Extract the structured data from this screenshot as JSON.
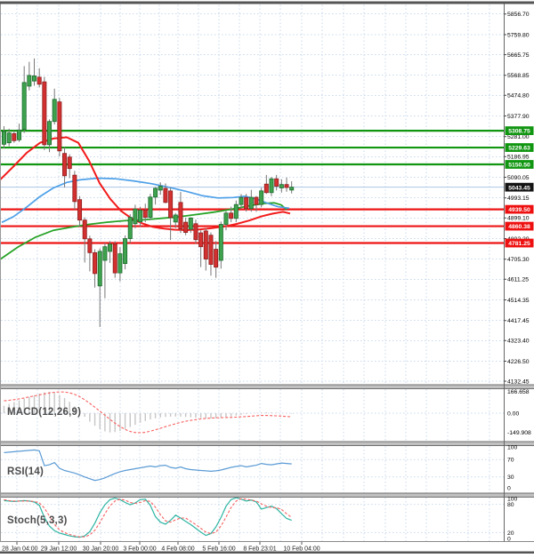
{
  "price_axis": {
    "labels": [
      "5856.70",
      "5759.80",
      "5665.75",
      "5568.85",
      "5474.80",
      "5377.90",
      "5281.00",
      "5186.95",
      "5090.05",
      "4993.15",
      "4899.10",
      "4802.20",
      "4705.30",
      "4611.25",
      "4514.35",
      "4417.45",
      "4323.40",
      "4226.50",
      "4132.45"
    ],
    "resistance_labels": [
      "5308.75",
      "5229.63",
      "5150.50"
    ],
    "support_labels": [
      "4939.50",
      "4860.38",
      "4781.25"
    ],
    "current_price_label": "5043.45"
  },
  "time_axis": {
    "labels": [
      "28 Jan 04:00",
      "29 Jan 12:00",
      "30 Jan 20:00",
      "3 Feb 00:00",
      "4 Feb 08:00",
      "5 Feb 16:00",
      "8 Feb 23:01",
      "10 Feb 04:00"
    ]
  },
  "indicators": {
    "macd": {
      "label": "MACD(12,26,9)",
      "axis_labels": [
        "166.658",
        "0.00",
        "-149.908"
      ]
    },
    "rsi": {
      "label": "RSI(14)",
      "axis_labels": [
        "100",
        "70",
        "30",
        "0"
      ]
    },
    "stoch": {
      "label": "Stoch(5,3,3)",
      "axis_labels": [
        "100",
        "80",
        "20",
        "0"
      ]
    }
  },
  "colors": {
    "grid": "#c9d9ec",
    "candle_up_fill": "#3ea24e",
    "candle_up_stroke": "#1e6b2e",
    "candle_down_fill": "#d33030",
    "candle_down_stroke": "#8e1f1f",
    "wick": "#777777",
    "ma_blue": "#4da0e8",
    "ma_red": "#f21b1b",
    "ma_green": "#27a327",
    "resistance_line": "#119611",
    "support_line": "#ee1414",
    "current_line": "#a8c6e6",
    "macd_hist": "#c6c6c6",
    "signal_red": "#f96060",
    "rsi_line": "#5b9bd5",
    "stoch_k": "#2fb5a3",
    "badge_green": "#119611",
    "badge_red": "#ee1010",
    "badge_black": "#141414",
    "separator_fill": "#c0c0c0",
    "separator_edge": "#707070",
    "axis_text": "#000000",
    "time_text": "#222222"
  },
  "chart_data": {
    "type": "candlestick",
    "timeframe_labels": [
      "28 Jan 04:00",
      "29 Jan 12:00",
      "30 Jan 20:00",
      "3 Feb 00:00",
      "4 Feb 08:00",
      "5 Feb 16:00",
      "8 Feb 23:01",
      "10 Feb 04:00"
    ],
    "y_axis_main_range": [
      4132.45,
      5856.7
    ],
    "levels": {
      "resistance": [
        5308.75,
        5229.63,
        5150.5
      ],
      "support": [
        4939.5,
        4860.38,
        4781.25
      ],
      "current": 5043.45
    },
    "candles_ohlc": [
      [
        5245,
        5330,
        5225,
        5305
      ],
      [
        5252,
        5318,
        5236,
        5298
      ],
      [
        5295,
        5310,
        5252,
        5262
      ],
      [
        5266,
        5342,
        5256,
        5312
      ],
      [
        5315,
        5612,
        5298,
        5535
      ],
      [
        5518,
        5632,
        5498,
        5568
      ],
      [
        5542,
        5648,
        5520,
        5566
      ],
      [
        5560,
        5602,
        5512,
        5527
      ],
      [
        5538,
        5562,
        5218,
        5243
      ],
      [
        5243,
        5362,
        5208,
        5352
      ],
      [
        5352,
        5506,
        5338,
        5456
      ],
      [
        5444,
        5462,
        5188,
        5214
      ],
      [
        5202,
        5232,
        5042,
        5097
      ],
      [
        5185,
        5198,
        5086,
        5131
      ],
      [
        5100,
        5120,
        4938,
        4976
      ],
      [
        4985,
        5002,
        4858,
        4889
      ],
      [
        4889,
        4902,
        4690,
        4801
      ],
      [
        4801,
        4816,
        4648,
        4736
      ],
      [
        4736,
        4752,
        4572,
        4638
      ],
      [
        4580,
        4756,
        4387,
        4742
      ],
      [
        4700,
        4782,
        4522,
        4764
      ],
      [
        4742,
        4791,
        4688,
        4776
      ],
      [
        4776,
        4790,
        4618,
        4641
      ],
      [
        4641,
        4762,
        4601,
        4731
      ],
      [
        4685,
        4817,
        4658,
        4802
      ],
      [
        4802,
        4917,
        4781,
        4902
      ],
      [
        4872,
        4961,
        4851,
        4941
      ],
      [
        4881,
        4952,
        4858,
        4935
      ],
      [
        4935,
        4966,
        4879,
        4902
      ],
      [
        4902,
        5012,
        4889,
        4997
      ],
      [
        4997,
        5044,
        4962,
        5038
      ],
      [
        5030,
        5066,
        5008,
        5048
      ],
      [
        5038,
        5061,
        4968,
        4972
      ],
      [
        5026,
        5041,
        4795,
        4901
      ],
      [
        4880,
        4922,
        4851,
        4913
      ],
      [
        4972,
        5021,
        4828,
        4847
      ],
      [
        4879,
        4901,
        4818,
        4831
      ],
      [
        4846,
        4902,
        4829,
        4899
      ],
      [
        4872,
        4891,
        4778,
        4797
      ],
      [
        4829,
        4841,
        4668,
        4764
      ],
      [
        4838,
        4851,
        4652,
        4706
      ],
      [
        4818,
        4831,
        4628,
        4681
      ],
      [
        4752,
        4791,
        4618,
        4668
      ],
      [
        4700,
        4882,
        4661,
        4869
      ],
      [
        4869,
        4931,
        4841,
        4922
      ],
      [
        4922,
        4952,
        4879,
        4897
      ],
      [
        4897,
        4981,
        4879,
        4962
      ],
      [
        4962,
        5011,
        4941,
        4995
      ],
      [
        4995,
        5012,
        4929,
        4943
      ],
      [
        4943,
        5031,
        4928,
        4996
      ],
      [
        4996,
        5002,
        4928,
        4962
      ],
      [
        4962,
        5041,
        4949,
        5026
      ],
      [
        5058,
        5101,
        5012,
        5018
      ],
      [
        5018,
        5092,
        5001,
        5083
      ],
      [
        5083,
        5101,
        5028,
        5048
      ],
      [
        5040,
        5081,
        5018,
        5056
      ],
      [
        5056,
        5089,
        5022,
        5042
      ],
      [
        5030,
        5071,
        5014,
        5043.45
      ]
    ],
    "overlays": {
      "ma_blue": [
        [
          2,
          4878
        ],
        [
          15,
          4905
        ],
        [
          30,
          4950
        ],
        [
          45,
          5000
        ],
        [
          60,
          5040
        ],
        [
          75,
          5066
        ],
        [
          90,
          5078
        ],
        [
          110,
          5086
        ],
        [
          130,
          5083
        ],
        [
          150,
          5073
        ],
        [
          170,
          5060
        ],
        [
          190,
          5043
        ],
        [
          210,
          5023
        ],
        [
          228,
          5003
        ],
        [
          245,
          4993
        ],
        [
          262,
          4995
        ],
        [
          275,
          5001
        ],
        [
          288,
          4988
        ],
        [
          300,
          4969
        ],
        [
          312,
          4952
        ],
        [
          325,
          4945
        ]
      ],
      "ma_red": [
        [
          0,
          5078
        ],
        [
          15,
          5140
        ],
        [
          30,
          5205
        ],
        [
          45,
          5252
        ],
        [
          60,
          5272
        ],
        [
          75,
          5278
        ],
        [
          88,
          5252
        ],
        [
          100,
          5168
        ],
        [
          112,
          5062
        ],
        [
          124,
          4988
        ],
        [
          136,
          4932
        ],
        [
          148,
          4896
        ],
        [
          160,
          4873
        ],
        [
          172,
          4857
        ],
        [
          184,
          4849
        ],
        [
          196,
          4844
        ],
        [
          210,
          4842
        ],
        [
          224,
          4845
        ],
        [
          238,
          4851
        ],
        [
          252,
          4859
        ],
        [
          266,
          4871
        ],
        [
          280,
          4887
        ],
        [
          294,
          4907
        ],
        [
          306,
          4919
        ],
        [
          318,
          4928
        ],
        [
          326,
          4920
        ]
      ],
      "ma_green": [
        [
          0,
          4704
        ],
        [
          20,
          4762
        ],
        [
          40,
          4809
        ],
        [
          60,
          4841
        ],
        [
          80,
          4856
        ],
        [
          100,
          4869
        ],
        [
          120,
          4879
        ],
        [
          140,
          4886
        ],
        [
          160,
          4890
        ],
        [
          180,
          4897
        ],
        [
          200,
          4904
        ],
        [
          220,
          4915
        ],
        [
          240,
          4926
        ],
        [
          260,
          4940
        ],
        [
          280,
          4956
        ],
        [
          296,
          4967
        ],
        [
          308,
          4970
        ],
        [
          316,
          4960
        ],
        [
          322,
          4938
        ]
      ]
    },
    "macd": {
      "axis_range": [
        -149.908,
        166.658
      ],
      "histogram": [
        58,
        72,
        86,
        99,
        112,
        126,
        140,
        152,
        162,
        166,
        158,
        142,
        118,
        88,
        52,
        14,
        -28,
        -66,
        -98,
        -124,
        -141,
        -150,
        -147,
        -138,
        -124,
        -108,
        -91,
        -75,
        -61,
        -49,
        -40,
        -33,
        -29,
        -27,
        -26,
        -27,
        -29,
        -32,
        -35,
        -38,
        -40,
        -41,
        -40,
        -37,
        -32,
        -26,
        -19,
        -12,
        -6,
        -1,
        3,
        6,
        7,
        6,
        4,
        1,
        -2,
        -4
      ],
      "signal": [
        96,
        100,
        105,
        111,
        118,
        126,
        134,
        142,
        150,
        157,
        162,
        165,
        164,
        158,
        146,
        128,
        104,
        76,
        46,
        15,
        -16,
        -48,
        -78,
        -104,
        -126,
        -142,
        -150,
        -152,
        -148,
        -140,
        -129,
        -117,
        -105,
        -93,
        -82,
        -72,
        -63,
        -56,
        -50,
        -45,
        -41,
        -38,
        -36,
        -35,
        -34,
        -33,
        -31,
        -28,
        -26,
        -23,
        -20,
        -18,
        -18,
        -19,
        -21,
        -23,
        -26,
        -28
      ]
    },
    "rsi": {
      "axis_range": [
        0,
        100
      ],
      "guides": [
        70,
        30
      ],
      "values": [
        86,
        87,
        88,
        89,
        90,
        91,
        92,
        90,
        56,
        58,
        63,
        50,
        45,
        42,
        39,
        35,
        30,
        26,
        22,
        24,
        28,
        33,
        38,
        42,
        45,
        47,
        49,
        51,
        53,
        55,
        53,
        56,
        57,
        52,
        50,
        53,
        49,
        47,
        46,
        45,
        44,
        43,
        44,
        46,
        49,
        52,
        54,
        56,
        53,
        55,
        57,
        61,
        59,
        58,
        60,
        62,
        61,
        60
      ]
    },
    "stoch": {
      "axis_range": [
        0,
        100
      ],
      "guides": [
        80,
        20
      ],
      "k": [
        88,
        87,
        86,
        87,
        88,
        87,
        85,
        78,
        52,
        34,
        24,
        19,
        16,
        13,
        11,
        10,
        13,
        22,
        40,
        62,
        79,
        90,
        93,
        90,
        84,
        79,
        83,
        90,
        91,
        78,
        54,
        42,
        38,
        46,
        57,
        51,
        44,
        37,
        29,
        21,
        14,
        18,
        32,
        52,
        76,
        90,
        94,
        91,
        87,
        89,
        85,
        70,
        73,
        76,
        71,
        60,
        50,
        46
      ],
      "d": [
        90,
        88,
        87,
        87,
        87,
        87,
        86,
        83,
        72,
        55,
        37,
        26,
        20,
        16,
        13,
        11,
        11,
        15,
        25,
        41,
        60,
        77,
        87,
        91,
        89,
        84,
        82,
        84,
        88,
        86,
        74,
        58,
        45,
        42,
        47,
        51,
        51,
        44,
        37,
        29,
        21,
        18,
        21,
        34,
        53,
        73,
        87,
        92,
        91,
        89,
        87,
        81,
        76,
        73,
        73,
        69,
        60,
        52
      ]
    }
  }
}
